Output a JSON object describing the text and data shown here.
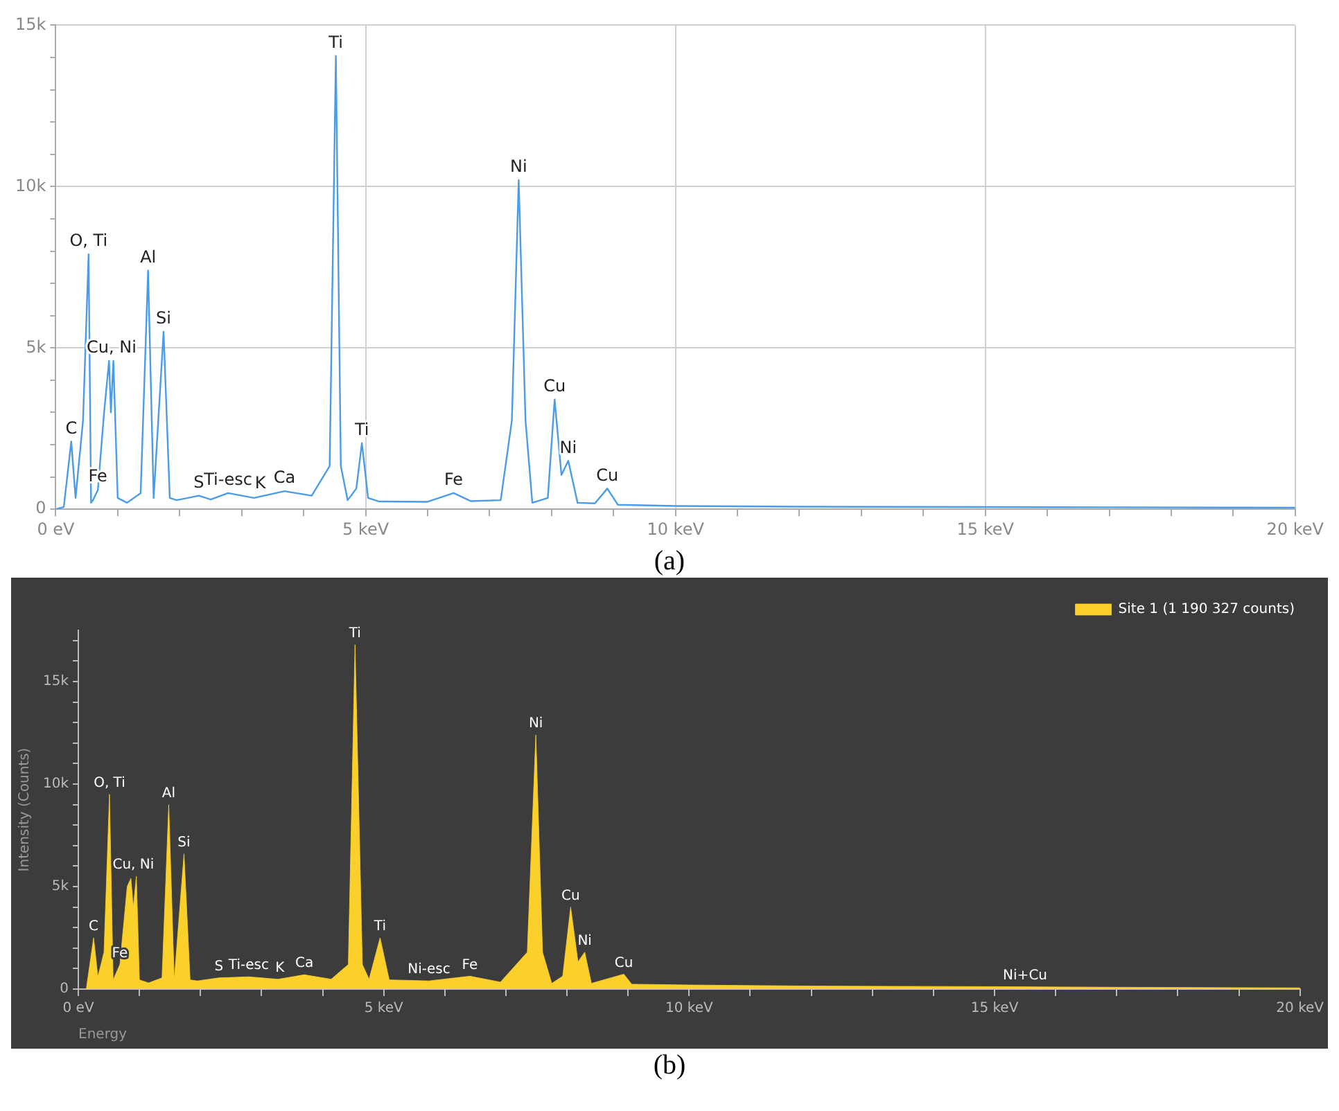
{
  "chart_data": [
    {
      "type": "line",
      "color": "#4a9be8",
      "grid": true,
      "legend": false,
      "marker": "none",
      "x": [
        0,
        0.13,
        0.25,
        0.32,
        0.44,
        0.53,
        0.57,
        0.6,
        0.68,
        0.78,
        0.86,
        0.89,
        0.93,
        1.0,
        1.15,
        1.37,
        1.49,
        1.58,
        1.74,
        1.84,
        1.95,
        2.31,
        2.5,
        2.78,
        3.2,
        3.69,
        4.13,
        4.42,
        4.52,
        4.6,
        4.71,
        4.85,
        4.94,
        5.04,
        5.22,
        6.0,
        6.42,
        6.7,
        7.18,
        7.36,
        7.47,
        7.58,
        7.69,
        7.94,
        8.05,
        8.16,
        8.27,
        8.42,
        8.7,
        8.9,
        9.07,
        10,
        12,
        15,
        17,
        20
      ],
      "values": [
        0,
        70,
        2100,
        350,
        2750,
        7900,
        200,
        280,
        600,
        3000,
        4600,
        3000,
        4600,
        350,
        200,
        500,
        7400,
        350,
        5500,
        350,
        280,
        420,
        300,
        500,
        350,
        560,
        420,
        1340,
        14050,
        1340,
        280,
        640,
        2050,
        350,
        240,
        230,
        500,
        250,
        280,
        2750,
        10200,
        2750,
        200,
        350,
        3400,
        1060,
        1500,
        200,
        180,
        640,
        140,
        100,
        80,
        70,
        60,
        50
      ],
      "xlim": [
        0,
        20
      ],
      "xticks": [
        {
          "value": 0,
          "label": "0 eV"
        },
        {
          "value": 1,
          "label": null
        },
        {
          "value": 2,
          "label": null
        },
        {
          "value": 3,
          "label": null
        },
        {
          "value": 4,
          "label": null
        },
        {
          "value": 5,
          "label": "5 keV"
        },
        {
          "value": 6,
          "label": null
        },
        {
          "value": 7,
          "label": null
        },
        {
          "value": 8,
          "label": null
        },
        {
          "value": 9,
          "label": null
        },
        {
          "value": 10,
          "label": "10 keV"
        },
        {
          "value": 11,
          "label": null
        },
        {
          "value": 12,
          "label": null
        },
        {
          "value": 13,
          "label": null
        },
        {
          "value": 14,
          "label": null
        },
        {
          "value": 15,
          "label": "15 keV"
        },
        {
          "value": 16,
          "label": null
        },
        {
          "value": 17,
          "label": null
        },
        {
          "value": 18,
          "label": null
        },
        {
          "value": 19,
          "label": null
        },
        {
          "value": 20,
          "label": "20 keV"
        }
      ],
      "ylim": [
        0,
        15000
      ],
      "yticks": [
        0,
        {
          "value": 1000,
          "label": null
        },
        {
          "value": 2000,
          "label": null
        },
        {
          "value": 3000,
          "label": null
        },
        {
          "value": 4000,
          "label": null
        },
        {
          "value": 5000,
          "label": "5k"
        },
        {
          "value": 6000,
          "label": null
        },
        {
          "value": 7000,
          "label": null
        },
        {
          "value": 8000,
          "label": null
        },
        {
          "value": 9000,
          "label": null
        },
        {
          "value": 10000,
          "label": "10k"
        },
        {
          "value": 11000,
          "label": null
        },
        {
          "value": 12000,
          "label": null
        },
        {
          "value": 13000,
          "label": null
        },
        {
          "value": 14000,
          "label": null
        },
        {
          "value": 15000,
          "label": "15k"
        }
      ],
      "annotations": [
        {
          "text": "C",
          "x": 0.25,
          "y": 2100
        },
        {
          "text": "O, Ti",
          "x": 0.53,
          "y": 7900
        },
        {
          "text": "Fe",
          "x": 0.68,
          "y": 600
        },
        {
          "text": "Cu, Ni",
          "x": 0.9,
          "y": 4600
        },
        {
          "text": "Al",
          "x": 1.49,
          "y": 7400
        },
        {
          "text": "Si",
          "x": 1.74,
          "y": 5500
        },
        {
          "text": "S",
          "x": 2.31,
          "y": 420
        },
        {
          "text": "Ti-esc",
          "x": 2.78,
          "y": 500
        },
        {
          "text": "K",
          "x": 3.3,
          "y": 400
        },
        {
          "text": "Ca",
          "x": 3.69,
          "y": 560
        },
        {
          "text": "Ti",
          "x": 4.52,
          "y": 14050
        },
        {
          "text": "Ti",
          "x": 4.94,
          "y": 2050
        },
        {
          "text": "Fe",
          "x": 6.42,
          "y": 500
        },
        {
          "text": "Ni",
          "x": 7.47,
          "y": 10200
        },
        {
          "text": "Cu",
          "x": 8.05,
          "y": 3400
        },
        {
          "text": "Ni",
          "x": 8.27,
          "y": 1500
        },
        {
          "text": "Cu",
          "x": 8.9,
          "y": 640
        },
        "(a)"
      ]
    },
    {
      "type": "area",
      "legend": "top right",
      "marker": "none",
      "xlabel": "Energy",
      "ylabel": "Intensity (Counts)",
      "series": [
        {
          "name": "Site 1 (1 190 327 counts)",
          "color": "#fcd02a",
          "x": [
            0.13,
            0.25,
            0.32,
            0.42,
            0.51,
            0.57,
            0.68,
            0.8,
            0.86,
            0.9,
            0.95,
            1.0,
            1.15,
            1.37,
            1.48,
            1.57,
            1.73,
            1.83,
            1.95,
            2.3,
            2.79,
            3.27,
            3.7,
            4.14,
            4.42,
            4.53,
            4.65,
            4.76,
            4.94,
            5.09,
            5.74,
            6.41,
            6.91,
            7.35,
            7.49,
            7.6,
            7.75,
            7.93,
            8.06,
            8.18,
            8.29,
            8.4,
            8.93,
            9.06,
            10,
            12,
            15,
            17,
            20
          ],
          "values": [
            0,
            2500,
            600,
            1800,
            9500,
            450,
            1200,
            5000,
            5400,
            4000,
            5500,
            450,
            300,
            550,
            9000,
            450,
            6600,
            450,
            400,
            550,
            600,
            480,
            700,
            480,
            1200,
            16800,
            1200,
            480,
            2500,
            450,
            400,
            630,
            340,
            1800,
            12400,
            1800,
            280,
            630,
            4000,
            1330,
            1800,
            280,
            730,
            240,
            200,
            150,
            120,
            90,
            60
          ]
        }
      ],
      "xlim": [
        0,
        20
      ],
      "xticks": [
        {
          "value": 0,
          "label": "0 eV"
        },
        {
          "value": 1,
          "label": null
        },
        {
          "value": 2,
          "label": null
        },
        {
          "value": 3,
          "label": null
        },
        {
          "value": 4,
          "label": null
        },
        {
          "value": 5,
          "label": "5 keV"
        },
        {
          "value": 6,
          "label": null
        },
        {
          "value": 7,
          "label": null
        },
        {
          "value": 8,
          "label": null
        },
        {
          "value": 9,
          "label": null
        },
        {
          "value": 10,
          "label": "10 keV"
        },
        {
          "value": 11,
          "label": null
        },
        {
          "value": 12,
          "label": null
        },
        {
          "value": 13,
          "label": null
        },
        {
          "value": 14,
          "label": null
        },
        {
          "value": 15,
          "label": "15 keV"
        },
        {
          "value": 16,
          "label": null
        },
        {
          "value": 17,
          "label": null
        },
        {
          "value": 18,
          "label": null
        },
        {
          "value": 19,
          "label": null
        },
        {
          "value": 20,
          "label": "20 keV"
        }
      ],
      "ylim": [
        0,
        17500
      ],
      "yticks": [
        0,
        {
          "value": 1000,
          "label": null
        },
        {
          "value": 2000,
          "label": null
        },
        {
          "value": 3000,
          "label": null
        },
        {
          "value": 4000,
          "label": null
        },
        {
          "value": 5000,
          "label": "5k"
        },
        {
          "value": 6000,
          "label": null
        },
        {
          "value": 7000,
          "label": null
        },
        {
          "value": 8000,
          "label": null
        },
        {
          "value": 9000,
          "label": null
        },
        {
          "value": 10000,
          "label": "10k"
        },
        {
          "value": 11000,
          "label": null
        },
        {
          "value": 12000,
          "label": null
        },
        {
          "value": 13000,
          "label": null
        },
        {
          "value": 14000,
          "label": null
        },
        {
          "value": 15000,
          "label": "15k"
        },
        {
          "value": 16000,
          "label": null
        },
        {
          "value": 17000,
          "label": null
        }
      ],
      "annotations": [
        {
          "text": "C",
          "x": 0.25,
          "y": 2500
        },
        {
          "text": "O, Ti",
          "x": 0.51,
          "y": 9500
        },
        {
          "text": "Fe",
          "x": 0.68,
          "y": 1200
        },
        {
          "text": "Cu, Ni",
          "x": 0.9,
          "y": 5500
        },
        {
          "text": "Al",
          "x": 1.48,
          "y": 9000
        },
        {
          "text": "Si",
          "x": 1.73,
          "y": 6600
        },
        {
          "text": "S",
          "x": 2.3,
          "y": 550
        },
        {
          "text": "Ti-esc",
          "x": 2.79,
          "y": 600
        },
        {
          "text": "K",
          "x": 3.3,
          "y": 480
        },
        {
          "text": "Ca",
          "x": 3.7,
          "y": 700
        },
        {
          "text": "Ti",
          "x": 4.53,
          "y": 16800
        },
        {
          "text": "Ti",
          "x": 4.94,
          "y": 2500
        },
        {
          "text": "Ni-esc",
          "x": 5.74,
          "y": 400
        },
        {
          "text": "Fe",
          "x": 6.41,
          "y": 630
        },
        {
          "text": "Ni",
          "x": 7.49,
          "y": 12400
        },
        {
          "text": "Cu",
          "x": 8.06,
          "y": 4000
        },
        {
          "text": "Ni",
          "x": 8.29,
          "y": 1800
        },
        {
          "text": "Cu",
          "x": 8.93,
          "y": 730
        },
        {
          "text": "Ni+Cu",
          "x": 15.5,
          "y": 120
        },
        "(b)"
      ]
    }
  ]
}
